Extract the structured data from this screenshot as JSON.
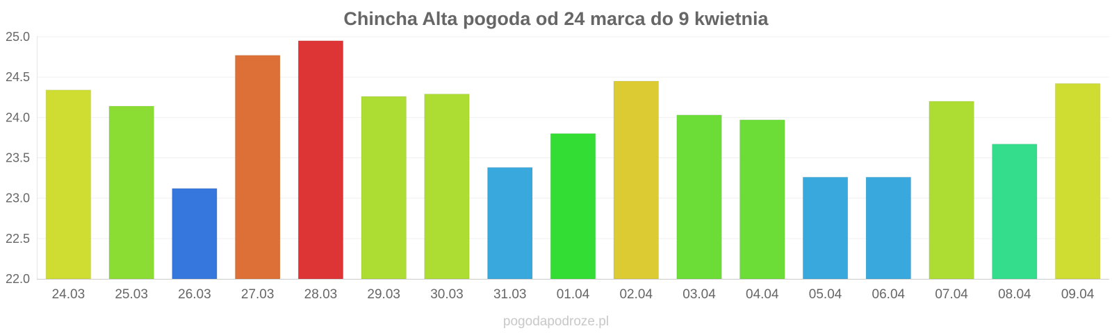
{
  "chart_data": {
    "type": "bar",
    "title": "Chincha Alta pogoda od 24 marca do 9 kwietnia",
    "xlabel": "",
    "ylabel": "",
    "categories": [
      "24.03",
      "25.03",
      "26.03",
      "27.03",
      "28.03",
      "29.03",
      "30.03",
      "31.03",
      "01.04",
      "02.04",
      "03.04",
      "04.04",
      "05.04",
      "06.04",
      "07.04",
      "08.04",
      "09.04"
    ],
    "values": [
      24.34,
      24.14,
      23.12,
      24.77,
      24.95,
      24.26,
      24.29,
      23.38,
      23.8,
      24.45,
      24.03,
      23.97,
      23.26,
      23.26,
      24.2,
      23.67,
      24.42
    ],
    "bar_colors": [
      "#cfdd33",
      "#8cdd33",
      "#3677dd",
      "#dd7036",
      "#dd3535",
      "#addd33",
      "#addd33",
      "#38a8dd",
      "#33dd33",
      "#ddcb33",
      "#6cdd37",
      "#6cdd37",
      "#38a8dd",
      "#38a8dd",
      "#addd33",
      "#34dd8c",
      "#cfdd33"
    ],
    "ylim": [
      22.0,
      25.0
    ],
    "yticks": [
      "22.0",
      "22.5",
      "23.0",
      "23.5",
      "24.0",
      "24.5",
      "25.0"
    ],
    "grid": true,
    "legend": "none"
  },
  "watermark": "pogodapodroze.pl"
}
